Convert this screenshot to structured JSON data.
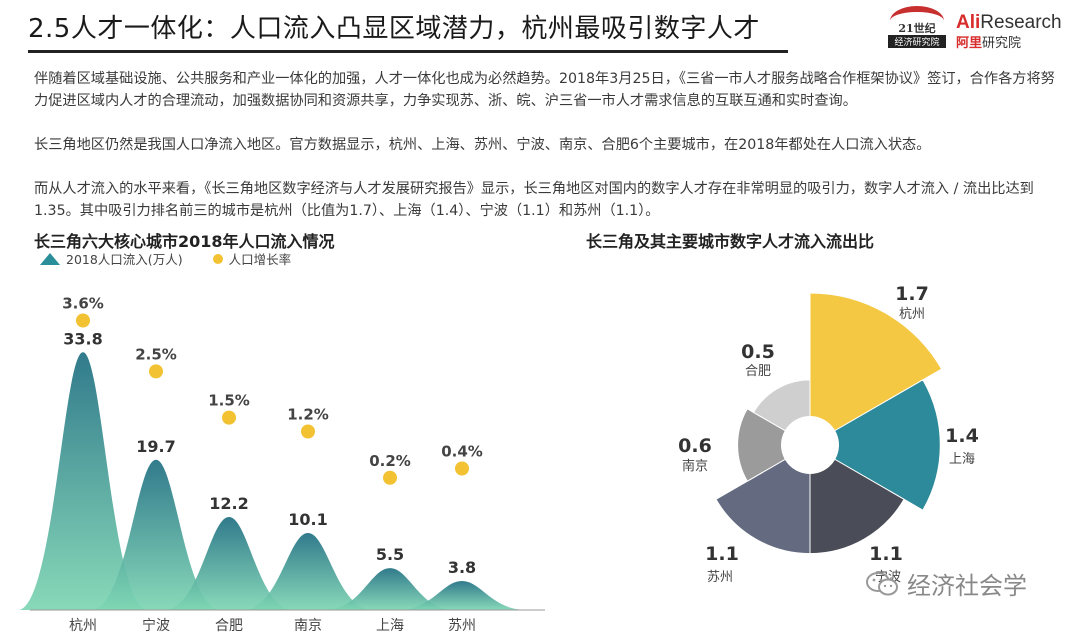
{
  "header": {
    "title": "2.5人才一体化：人口流入凸显区域潜力，杭州最吸引数字人才",
    "logo_21_line1": "21世纪",
    "logo_21_line2": "经济研究院",
    "ali_en_prefix": "Ali",
    "ali_en_suffix": "Research",
    "ali_cn_prefix": "阿里",
    "ali_cn_suffix": "研究院"
  },
  "paragraphs": [
    "伴随着区域基础设施、公共服务和产业一体化的加强，人才一体化也成为必然趋势。2018年3月25日，《三省一市人才服务战略合作框架协议》签订，合作各方将努力促进区域内人才的合理流动，加强数据协同和资源共享，力争实现苏、浙、皖、沪三省一市人才需求信息的互联互通和实时查询。",
    "长三角地区仍然是我国人口净流入地区。官方数据显示，杭州、上海、苏州、宁波、南京、合肥6个主要城市，在2018年都处在人口流入状态。",
    "而从人才流入的水平来看，《长三角地区数字经济与人才发展研究报告》显示，长三角地区对国内的数字人才存在非常明显的吸引力，数字人才流入 / 流出比达到1.35。其中吸引力排名前三的城市是杭州（比值为1.7）、上海（1.4）、宁波（1.1）和苏州（1.1）。"
  ],
  "chart_data": [
    {
      "type": "area",
      "title": "长三角六大核心城市2018年人口流入情况",
      "categories": [
        "杭州",
        "宁波",
        "合肥",
        "南京",
        "上海",
        "苏州"
      ],
      "series": [
        {
          "name": "2018人口流入(万人)",
          "values": [
            33.8,
            19.7,
            12.2,
            10.1,
            5.5,
            3.8
          ],
          "value_labels": [
            "33.8",
            "19.7",
            "12.2",
            "10.1",
            "5.5",
            "3.8"
          ],
          "color": "#2a8f99"
        },
        {
          "name": "人口增长率",
          "values": [
            3.6,
            2.5,
            1.5,
            1.2,
            0.2,
            0.4
          ],
          "value_labels": [
            "3.6%",
            "2.5%",
            "1.5%",
            "1.2%",
            "0.2%",
            "0.4%"
          ],
          "color": "#f2c232"
        }
      ],
      "ylim": [
        0,
        40
      ],
      "legend": "top-left",
      "grid": false
    },
    {
      "type": "pie",
      "title": "长三角及其主要城市数字人才流入流出比",
      "slices": [
        {
          "label": "杭州",
          "value": 1.7,
          "value_label": "1.7",
          "color": "#f4c842"
        },
        {
          "label": "上海",
          "value": 1.4,
          "value_label": "1.4",
          "color": "#2c8a9a"
        },
        {
          "label": "宁波",
          "value": 1.1,
          "value_label": "1.1",
          "color": "#4a4d57"
        },
        {
          "label": "苏州",
          "value": 1.1,
          "value_label": "1.1",
          "color": "#646b80"
        },
        {
          "label": "南京",
          "value": 0.6,
          "value_label": "0.6",
          "color": "#9b9b9b"
        },
        {
          "label": "合肥",
          "value": 0.5,
          "value_label": "0.5",
          "color": "#cfcfcf"
        }
      ],
      "style": "rose-donut"
    }
  ],
  "wechat": {
    "label": "经济社会学"
  }
}
